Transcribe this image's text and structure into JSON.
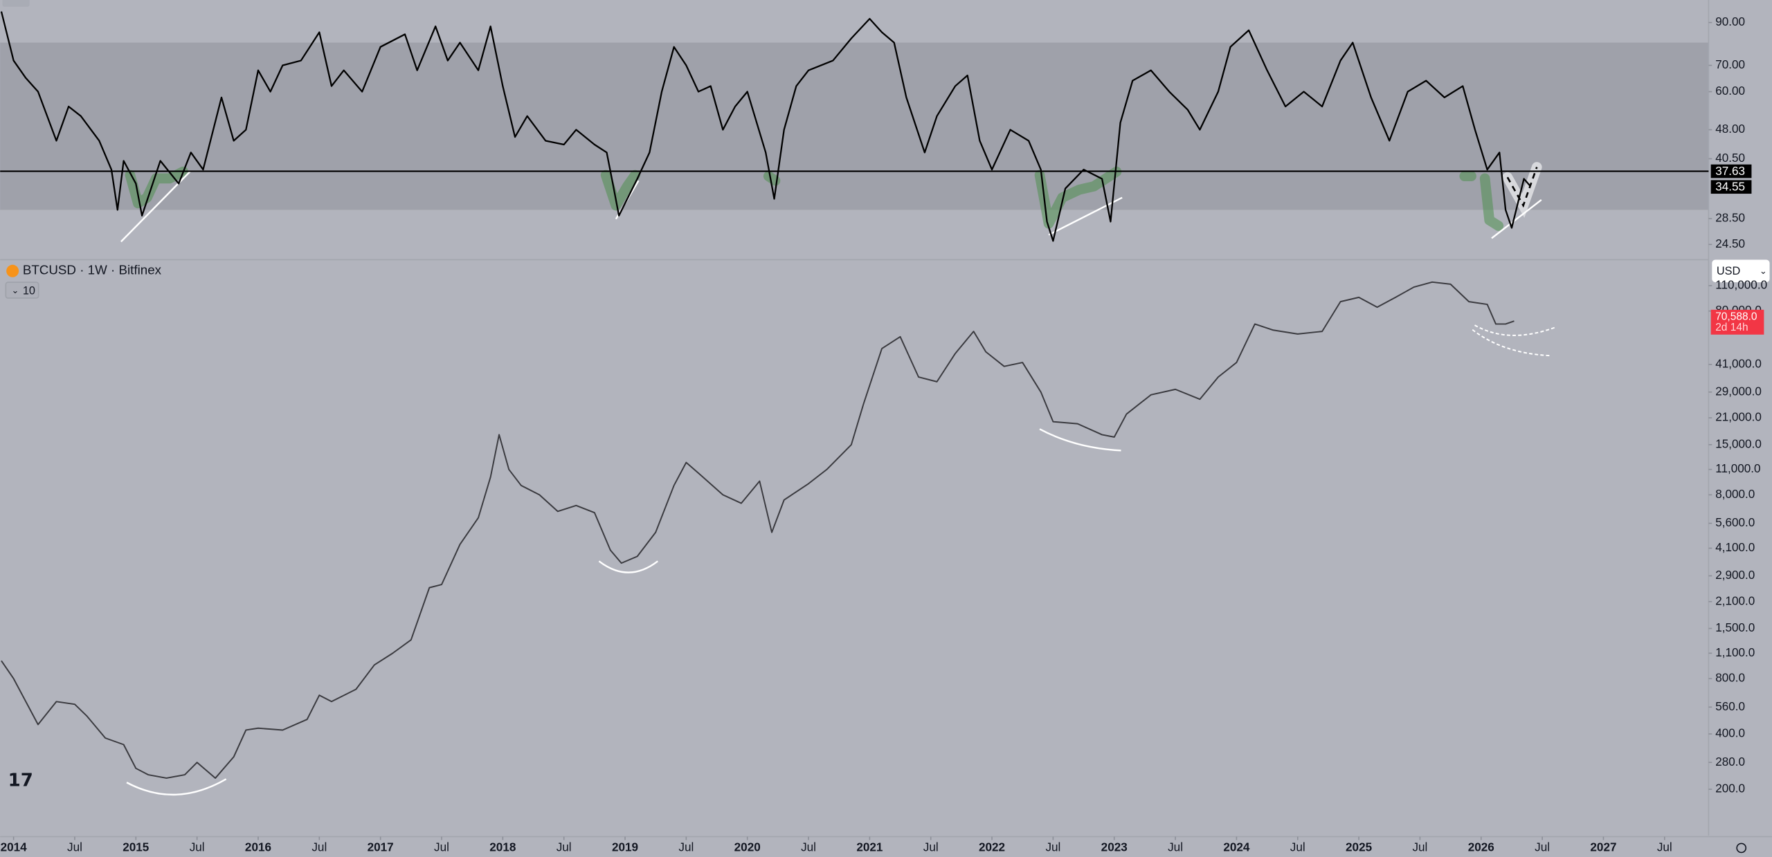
{
  "chart_data": [
    {
      "type": "line",
      "color": "#000000",
      "log_y": true,
      "ylim": [
        22.7,
        102.7
      ],
      "yticks": [
        {
          "value": 90,
          "label": "90.00"
        },
        {
          "value": 70,
          "label": "70.00"
        },
        {
          "value": 60,
          "label": "60.00"
        },
        {
          "value": 48,
          "label": "48.00"
        },
        {
          "value": 40.5,
          "label": "40.50"
        },
        {
          "value": 28.5,
          "label": "28.50"
        },
        {
          "value": 24.5,
          "label": "24.50"
        }
      ],
      "band": [
        30,
        80
      ],
      "horizontal_line": 37.63,
      "last_value": 34.55,
      "xlim": [
        2013.89,
        2027.86
      ],
      "x": [
        2013.9,
        2014.0,
        2014.1,
        2014.2,
        2014.35,
        2014.45,
        2014.55,
        2014.7,
        2014.8,
        2014.85,
        2014.9,
        2015.0,
        2015.05,
        2015.2,
        2015.35,
        2015.45,
        2015.55,
        2015.7,
        2015.8,
        2015.9,
        2016.0,
        2016.1,
        2016.2,
        2016.35,
        2016.5,
        2016.6,
        2016.7,
        2016.85,
        2017.0,
        2017.2,
        2017.3,
        2017.45,
        2017.55,
        2017.65,
        2017.8,
        2017.9,
        2018.0,
        2018.1,
        2018.2,
        2018.35,
        2018.5,
        2018.6,
        2018.75,
        2018.85,
        2018.9,
        2018.95,
        2019.1,
        2019.2,
        2019.3,
        2019.4,
        2019.5,
        2019.6,
        2019.7,
        2019.8,
        2019.9,
        2020.0,
        2020.15,
        2020.22,
        2020.3,
        2020.4,
        2020.5,
        2020.7,
        2020.85,
        2021.0,
        2021.1,
        2021.2,
        2021.3,
        2021.45,
        2021.55,
        2021.7,
        2021.8,
        2021.9,
        2022.0,
        2022.15,
        2022.3,
        2022.4,
        2022.45,
        2022.5,
        2022.6,
        2022.75,
        2022.9,
        2022.97,
        2023.05,
        2023.15,
        2023.3,
        2023.45,
        2023.6,
        2023.7,
        2023.85,
        2023.95,
        2024.1,
        2024.25,
        2024.4,
        2024.55,
        2024.7,
        2024.85,
        2024.95,
        2025.1,
        2025.25,
        2025.4,
        2025.55,
        2025.7,
        2025.85,
        2025.95,
        2026.05,
        2026.15,
        2026.2,
        2026.25,
        2026.35,
        2026.4
      ],
      "values": [
        96,
        72,
        65,
        60,
        45,
        55,
        52,
        45,
        38,
        30,
        40,
        35,
        29,
        40,
        35,
        42,
        38,
        58,
        45,
        48,
        68,
        60,
        70,
        72,
        85,
        62,
        68,
        60,
        78,
        84,
        68,
        88,
        72,
        80,
        68,
        88,
        62,
        46,
        52,
        45,
        44,
        48,
        44,
        42,
        35,
        29,
        36,
        42,
        60,
        78,
        70,
        60,
        62,
        48,
        55,
        60,
        42,
        32,
        48,
        62,
        68,
        72,
        82,
        92,
        85,
        80,
        58,
        42,
        52,
        62,
        66,
        45,
        38,
        48,
        45,
        38,
        28,
        25,
        34,
        38,
        36,
        28,
        50,
        64,
        68,
        60,
        54,
        48,
        60,
        78,
        86,
        68,
        55,
        60,
        55,
        72,
        80,
        58,
        45,
        60,
        64,
        58,
        62,
        48,
        38,
        42,
        30,
        27,
        36,
        34.55
      ]
    },
    {
      "type": "line",
      "color": "#3a3a3f",
      "log_y": true,
      "title": "BTCUSD · 1W · Bitfinex",
      "indicator_count": 10,
      "currency": "USD",
      "ylim": [
        112,
        148000
      ],
      "yticks": [
        {
          "value": 110000,
          "label": "110,000.0"
        },
        {
          "value": 80000,
          "label": "80,000.0"
        },
        {
          "value": 41000,
          "label": "41,000.0"
        },
        {
          "value": 29000,
          "label": "29,000.0"
        },
        {
          "value": 21000,
          "label": "21,000.0"
        },
        {
          "value": 15000,
          "label": "15,000.0"
        },
        {
          "value": 11000,
          "label": "11,000.0"
        },
        {
          "value": 8000,
          "label": "8,000.0"
        },
        {
          "value": 5600,
          "label": "5,600.0"
        },
        {
          "value": 4100,
          "label": "4,100.0"
        },
        {
          "value": 2900,
          "label": "2,900.0"
        },
        {
          "value": 2100,
          "label": "2,100.0"
        },
        {
          "value": 1500,
          "label": "1,500.0"
        },
        {
          "value": 1100,
          "label": "1,100.0"
        },
        {
          "value": 800,
          "label": "800.0"
        },
        {
          "value": 560,
          "label": "560.0"
        },
        {
          "value": 400,
          "label": "400.0"
        },
        {
          "value": 280,
          "label": "280.0"
        },
        {
          "value": 200,
          "label": "200.0"
        }
      ],
      "last_value": 70588,
      "last_value_label": "70,588.0",
      "countdown": "2d 14h",
      "xlim": [
        2013.89,
        2027.86
      ],
      "xticks": [
        2014,
        {
          "value": 2014.5,
          "label": "Jul"
        },
        2015,
        {
          "value": 2015.5,
          "label": "Jul"
        },
        2016,
        {
          "value": 2016.5,
          "label": "Jul"
        },
        2017,
        {
          "value": 2017.5,
          "label": "Jul"
        },
        2018,
        {
          "value": 2018.5,
          "label": "Jul"
        },
        2019,
        {
          "value": 2019.5,
          "label": "Jul"
        },
        2020,
        {
          "value": 2020.5,
          "label": "Jul"
        },
        2021,
        {
          "value": 2021.5,
          "label": "Jul"
        },
        2022,
        {
          "value": 2022.5,
          "label": "Jul"
        },
        2023,
        {
          "value": 2023.5,
          "label": "Jul"
        },
        2024,
        {
          "value": 2024.5,
          "label": "Jul"
        },
        2025,
        {
          "value": 2025.5,
          "label": "Jul"
        },
        2026,
        {
          "value": 2026.5,
          "label": "Jul"
        },
        2027,
        {
          "value": 2027.5,
          "label": "Jul"
        }
      ],
      "x": [
        2013.9,
        2014.0,
        2014.1,
        2014.2,
        2014.35,
        2014.5,
        2014.6,
        2014.75,
        2014.9,
        2015.0,
        2015.1,
        2015.25,
        2015.4,
        2015.5,
        2015.65,
        2015.8,
        2015.9,
        2016.0,
        2016.2,
        2016.4,
        2016.5,
        2016.6,
        2016.8,
        2016.95,
        2017.1,
        2017.25,
        2017.4,
        2017.5,
        2017.65,
        2017.8,
        2017.9,
        2017.97,
        2018.05,
        2018.15,
        2018.3,
        2018.45,
        2018.6,
        2018.75,
        2018.88,
        2018.97,
        2019.1,
        2019.25,
        2019.4,
        2019.5,
        2019.6,
        2019.8,
        2019.95,
        2020.1,
        2020.2,
        2020.3,
        2020.5,
        2020.65,
        2020.85,
        2020.95,
        2021.1,
        2021.25,
        2021.4,
        2021.55,
        2021.7,
        2021.85,
        2021.95,
        2022.1,
        2022.25,
        2022.4,
        2022.5,
        2022.7,
        2022.9,
        2023.0,
        2023.1,
        2023.3,
        2023.5,
        2023.7,
        2023.85,
        2024.0,
        2024.15,
        2024.3,
        2024.5,
        2024.7,
        2024.85,
        2025.0,
        2025.15,
        2025.3,
        2025.45,
        2025.6,
        2025.75,
        2025.9,
        2026.05,
        2026.12,
        2026.2,
        2026.27
      ],
      "values": [
        1000,
        800,
        600,
        450,
        600,
        580,
        500,
        380,
        350,
        260,
        240,
        230,
        240,
        280,
        230,
        300,
        420,
        430,
        420,
        480,
        650,
        600,
        700,
        950,
        1100,
        1300,
        2500,
        2600,
        4300,
        6000,
        10000,
        17000,
        11000,
        9000,
        8000,
        6500,
        7000,
        6400,
        4000,
        3400,
        3700,
        5000,
        9000,
        12000,
        10500,
        8000,
        7200,
        9500,
        5000,
        7500,
        9200,
        11000,
        15000,
        25000,
        50000,
        58000,
        35000,
        33000,
        47000,
        62000,
        48000,
        40000,
        42000,
        29000,
        20000,
        19500,
        17000,
        16500,
        22000,
        28000,
        30000,
        26500,
        35000,
        42000,
        68000,
        63000,
        60000,
        62000,
        90000,
        95000,
        84000,
        95000,
        108000,
        115000,
        112000,
        90000,
        87000,
        68000,
        68000,
        70588
      ]
    }
  ]
}
